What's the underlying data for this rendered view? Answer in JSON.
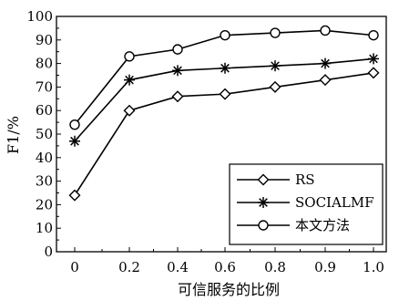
{
  "chart_data": {
    "type": "line",
    "xlabel": "可信服务的比例",
    "ylabel": "F1/%",
    "x_tick_labels": [
      "0",
      "0.2",
      "0.4",
      "0.6",
      "0.8",
      "0.9",
      "1.0"
    ],
    "ylim": [
      0,
      100
    ],
    "y_ticks": [
      0,
      10,
      20,
      30,
      40,
      50,
      60,
      70,
      80,
      90,
      100
    ],
    "grid": false,
    "legend_position": "bottom-right",
    "series": [
      {
        "name": "RS",
        "marker": "diamond",
        "values": [
          24,
          60,
          66,
          67,
          70,
          73,
          76
        ]
      },
      {
        "name": "SOCIALMF",
        "marker": "asterisk",
        "values": [
          47,
          73,
          77,
          78,
          79,
          80,
          82
        ]
      },
      {
        "name": "本文方法",
        "marker": "circle",
        "values": [
          54,
          83,
          86,
          92,
          93,
          94,
          92
        ]
      }
    ]
  }
}
